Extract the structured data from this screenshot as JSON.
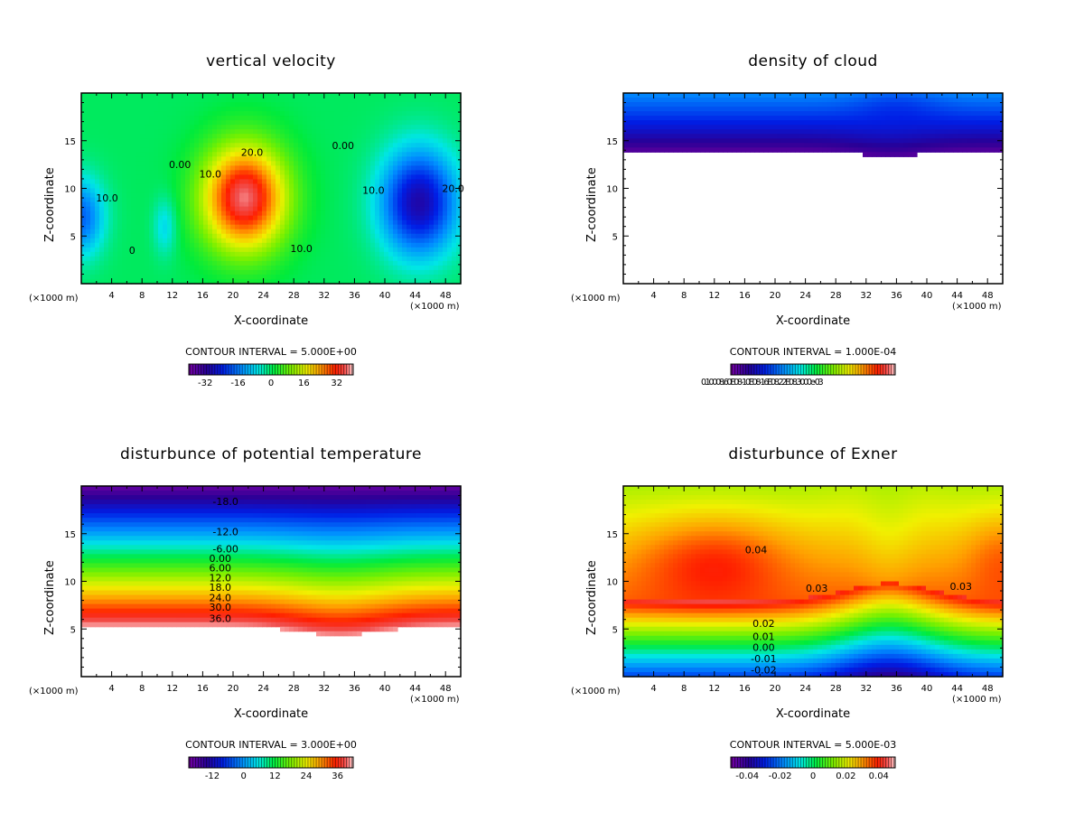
{
  "chart_data": [
    {
      "type": "heatmap",
      "id": "w",
      "title": "vertical velocity",
      "xlabel": "X-coordinate",
      "ylabel": "Z-coordinate",
      "x_unit_left": "(×1000 m)",
      "x_unit_right": "(×1000 m)",
      "xlim": [
        0,
        50
      ],
      "ylim": [
        0,
        20
      ],
      "xticks": [
        4,
        8,
        12,
        16,
        20,
        24,
        28,
        32,
        36,
        40,
        44,
        48
      ],
      "yticks": [
        5,
        10,
        15
      ],
      "contour_interval": "CONTOUR INTERVAL = 5.000E+00",
      "colorbar_range": [
        -40,
        40
      ],
      "colorbar_ticks": [
        "-32",
        "-16",
        "0",
        "16",
        "32"
      ],
      "contour_labels": [
        {
          "text": "20.0",
          "x": 22.5,
          "z": 13.8
        },
        {
          "text": "10.0",
          "x": 17,
          "z": 11.5
        },
        {
          "text": "10.0",
          "x": 29,
          "z": 3.7
        },
        {
          "text": "0.00",
          "x": 13,
          "z": 12.5
        },
        {
          "text": "0.00",
          "x": 34.5,
          "z": 14.5
        },
        {
          "text": "10.0",
          "x": 3.4,
          "z": 9
        },
        {
          "text": "10.0",
          "x": 38.5,
          "z": 9.8
        },
        {
          "text": "20.0",
          "x": 49,
          "z": 10
        },
        {
          "text": "0",
          "x": 6.7,
          "z": 3.5
        }
      ],
      "features": [
        {
          "kind": "max",
          "x": 21,
          "z": 9,
          "value": 38
        },
        {
          "kind": "min",
          "x": 44.5,
          "z": 8.5,
          "value": -30
        },
        {
          "kind": "min",
          "x": 1,
          "z": 7,
          "value": -18
        },
        {
          "kind": "min",
          "x": 11,
          "z": 7,
          "value": -10
        }
      ]
    },
    {
      "type": "heatmap",
      "id": "qc",
      "title": "density of cloud",
      "xlabel": "X-coordinate",
      "ylabel": "Z-coordinate",
      "x_unit_left": "(×1000 m)",
      "x_unit_right": "(×1000 m)",
      "xlim": [
        0,
        50
      ],
      "ylim": [
        0,
        20
      ],
      "xticks": [
        4,
        8,
        12,
        16,
        20,
        24,
        28,
        32,
        36,
        40,
        44,
        48
      ],
      "yticks": [
        5,
        10,
        15
      ],
      "contour_interval": "CONTOUR INTERVAL = 1.000E-04",
      "colorbar_label_text": "0.10008.60E08-10E08-16E08.22E08.3000e-03",
      "features": [
        {
          "kind": "cloud_base",
          "z": 14.0
        },
        {
          "kind": "cloud_base_dip",
          "x": 35,
          "z": 13.4
        }
      ]
    },
    {
      "type": "heatmap",
      "id": "theta",
      "title": "disturbunce of potential temperature",
      "xlabel": "X-coordinate",
      "ylabel": "Z-coordinate",
      "x_unit_left": "(×1000 m)",
      "x_unit_right": "(×1000 m)",
      "xlim": [
        0,
        50
      ],
      "ylim": [
        0,
        20
      ],
      "xticks": [
        4,
        8,
        12,
        16,
        20,
        24,
        28,
        32,
        36,
        40,
        44,
        48
      ],
      "yticks": [
        5,
        10,
        15
      ],
      "contour_interval": "CONTOUR INTERVAL = 3.000E+00",
      "colorbar_range": [
        -21,
        42
      ],
      "colorbar_ticks": [
        "-12",
        "0",
        "12",
        "24",
        "36"
      ],
      "contour_labels": [
        {
          "text": "-18.0",
          "x": 19,
          "z": 18.4
        },
        {
          "text": "-12.0",
          "x": 19,
          "z": 15.2
        },
        {
          "text": "-6.00",
          "x": 19,
          "z": 13.4
        },
        {
          "text": "0.00",
          "x": 18.3,
          "z": 12.4
        },
        {
          "text": "6.00",
          "x": 18.3,
          "z": 11.4
        },
        {
          "text": "12.0",
          "x": 18.3,
          "z": 10.4
        },
        {
          "text": "18.0",
          "x": 18.3,
          "z": 9.4
        },
        {
          "text": "24.0",
          "x": 18.3,
          "z": 8.3
        },
        {
          "text": "30.0",
          "x": 18.3,
          "z": 7.3
        },
        {
          "text": "36.0",
          "x": 18.3,
          "z": 6.1
        }
      ]
    },
    {
      "type": "heatmap",
      "id": "exner",
      "title": "disturbunce of Exner",
      "xlabel": "X-coordinate",
      "ylabel": "Z-coordinate",
      "x_unit_left": "(×1000 m)",
      "x_unit_right": "(×1000 m)",
      "xlim": [
        0,
        50
      ],
      "ylim": [
        0,
        20
      ],
      "xticks": [
        4,
        8,
        12,
        16,
        20,
        24,
        28,
        32,
        36,
        40,
        44,
        48
      ],
      "yticks": [
        5,
        10,
        15
      ],
      "contour_interval": "CONTOUR INTERVAL = 5.000E-03",
      "colorbar_range": [
        -0.05,
        0.05
      ],
      "colorbar_ticks": [
        "-0.04",
        "-0.02",
        "0",
        "0.02",
        "0.04"
      ],
      "contour_labels": [
        {
          "text": "0.04",
          "x": 17.5,
          "z": 13.3
        },
        {
          "text": "0.03",
          "x": 25.5,
          "z": 9.3
        },
        {
          "text": "0.03",
          "x": 44.5,
          "z": 9.5
        },
        {
          "text": "0.02",
          "x": 18.5,
          "z": 5.6
        },
        {
          "text": "0.01",
          "x": 18.5,
          "z": 4.2
        },
        {
          "text": "0.00",
          "x": 18.5,
          "z": 3.1
        },
        {
          "text": "-0.01",
          "x": 18.5,
          "z": 1.9
        },
        {
          "text": "-0.02",
          "x": 18.5,
          "z": 0.7
        }
      ]
    }
  ]
}
